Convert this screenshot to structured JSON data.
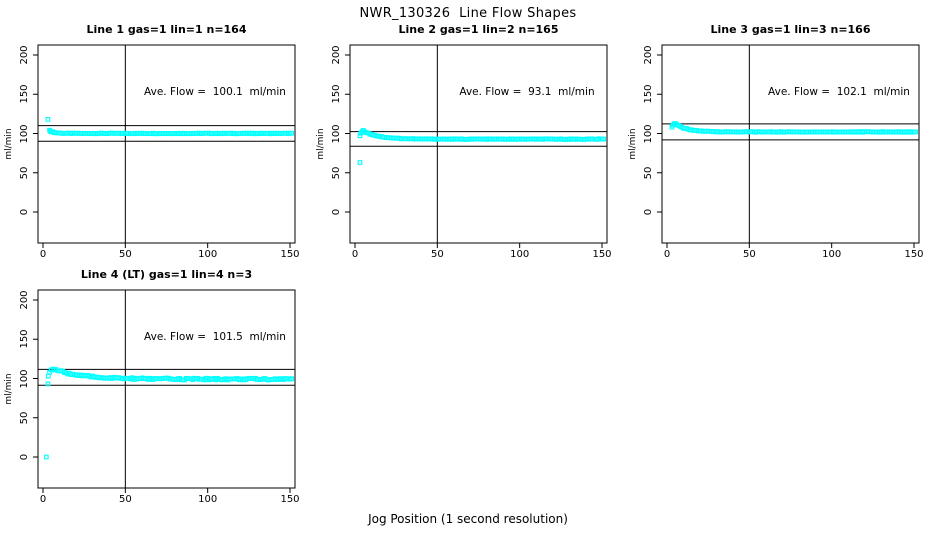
{
  "page": {
    "main_title": "NWR_130326  Line Flow Shapes",
    "xlabel": "Jog Position (1 second resolution)"
  },
  "colors": {
    "points": "#00ffff",
    "axis": "#000000",
    "background": "#ffffff"
  },
  "chart_data": {
    "type": "scatter",
    "layout_hint": "2x3 grid, 4 panels used; black box axes, vertical rule at x=50, horizontal rules at ±10% of average flow; cyan open-square markers",
    "axes": {
      "x_ticks": [
        0,
        50,
        100,
        150
      ],
      "y_ticks": [
        0,
        50,
        100,
        150,
        200
      ],
      "xlim": [
        0,
        155
      ],
      "ylim": [
        0,
        210
      ],
      "y_axis_label": "ml/min",
      "grid": false
    },
    "panels": [
      {
        "title": "Line 1 gas=1 lin=1 n=164",
        "n": 164,
        "ave_flow": 100.1,
        "ave_flow_label": "Ave. Flow =  100.1  ml/min",
        "ref_lines": [
          90.1,
          110.1
        ],
        "vline_x": 50,
        "outliers": [
          [
            3,
            118
          ]
        ],
        "head_points": [
          [
            4,
            104.2
          ],
          [
            4.5,
            102.8
          ]
        ],
        "decay": {
          "from_x": 5,
          "end_x": 151,
          "step": 1,
          "base": 100.1,
          "amp": 2.4,
          "tau": 3.0,
          "noise": 0.45
        },
        "steady_value": 100.1
      },
      {
        "title": "Line 2 gas=1 lin=2 n=165",
        "n": 165,
        "ave_flow": 93.1,
        "ave_flow_label": "Ave. Flow =  93.1  ml/min",
        "ref_lines": [
          83.8,
          102.4
        ],
        "vline_x": 50,
        "outliers": [
          [
            3,
            63
          ]
        ],
        "head_points": [
          [
            3,
            97
          ],
          [
            3.6,
            100.5
          ],
          [
            4.3,
            102.5
          ]
        ],
        "decay": {
          "from_x": 5,
          "end_x": 151,
          "step": 1,
          "base": 92.8,
          "amp": 10.7,
          "tau": 9.0,
          "noise": 0.45
        },
        "steady_value": 93.1
      },
      {
        "title": "Line 3 gas=1 lin=3 n=166",
        "n": 166,
        "ave_flow": 102.1,
        "ave_flow_label": "Ave. Flow =  102.1  ml/min",
        "ref_lines": [
          91.9,
          112.3
        ],
        "vline_x": 50,
        "outliers": [],
        "head_points": [
          [
            3,
            108
          ],
          [
            3.6,
            110.5
          ],
          [
            4.3,
            112.3
          ]
        ],
        "decay": {
          "from_x": 5,
          "end_x": 151,
          "step": 1,
          "base": 102.0,
          "amp": 10.5,
          "tau": 7.0,
          "noise": 0.45
        },
        "steady_value": 102.1
      },
      {
        "title": "Line 4 (LT) gas=1 lin=4 n=3",
        "n": 3,
        "ave_flow": 101.5,
        "ave_flow_label": "Ave. Flow =  101.5  ml/min",
        "ref_lines": [
          91.35,
          111.65
        ],
        "vline_x": 50,
        "outliers": [
          [
            2,
            0
          ],
          [
            3,
            93
          ],
          [
            3.2,
            103
          ]
        ],
        "head_points": [
          [
            4,
            108
          ],
          [
            5,
            111
          ],
          [
            6,
            112
          ]
        ],
        "decay": {
          "from_x": 7,
          "end_x": 151,
          "step": 1,
          "base": 99.2,
          "amp": 12.5,
          "tau": 16.0,
          "noise": 1.2
        },
        "steady_value": 101.5
      }
    ]
  }
}
